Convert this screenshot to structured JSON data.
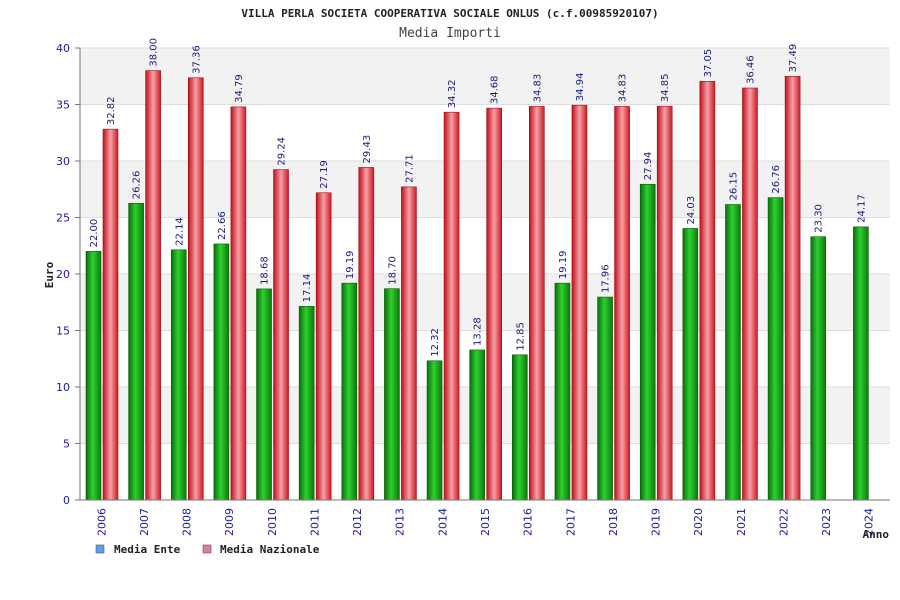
{
  "chart_data": {
    "type": "bar",
    "title": "VILLA PERLA SOCIETA COOPERATIVA SOCIALE ONLUS (c.f.00985920107)",
    "subtitle": "Media Importi",
    "xlabel": "Anno",
    "ylabel": "Euro",
    "ylim": [
      0,
      40
    ],
    "yticks": [
      "0",
      "5",
      "10",
      "15",
      "20",
      "25",
      "30",
      "35",
      "40"
    ],
    "categories": [
      "2006",
      "2007",
      "2008",
      "2009",
      "2010",
      "2011",
      "2012",
      "2013",
      "2014",
      "2015",
      "2016",
      "2017",
      "2018",
      "2019",
      "2020",
      "2021",
      "2022",
      "2023",
      "2024"
    ],
    "series": [
      {
        "name": "Media Ente",
        "legend_color": "#5da0e6",
        "bar_color": "#16a516",
        "values": [
          22.0,
          26.26,
          22.14,
          22.66,
          18.68,
          17.14,
          19.19,
          18.7,
          12.32,
          13.28,
          12.85,
          19.19,
          17.96,
          27.94,
          24.03,
          26.15,
          26.76,
          23.3,
          24.17
        ],
        "labels": [
          "22.00",
          "26.26",
          "22.14",
          "22.66",
          "18.68",
          "17.14",
          "19.19",
          "18.70",
          "12.32",
          "13.28",
          "12.85",
          "19.19",
          "17.96",
          "27.94",
          "24.03",
          "26.15",
          "26.76",
          "23.30",
          "24.17"
        ]
      },
      {
        "name": "Media Nazionale",
        "legend_color": "#e07aa8",
        "bar_color": "#e8202e",
        "values": [
          32.82,
          38.0,
          37.36,
          34.79,
          29.24,
          27.19,
          29.43,
          27.71,
          34.32,
          34.68,
          34.83,
          34.94,
          34.83,
          34.85,
          37.05,
          36.46,
          37.49,
          null,
          null
        ],
        "labels": [
          "32.82",
          "38.00",
          "37.36",
          "34.79",
          "29.24",
          "27.19",
          "29.43",
          "27.71",
          "34.32",
          "34.68",
          "34.83",
          "34.94",
          "34.83",
          "34.85",
          "37.05",
          "36.46",
          "37.49",
          null,
          null
        ]
      }
    ]
  }
}
